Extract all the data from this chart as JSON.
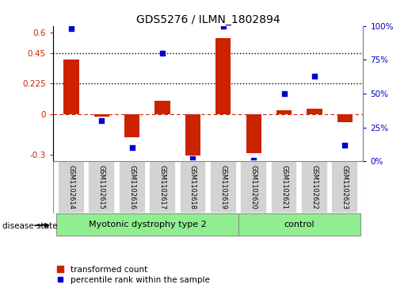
{
  "title": "GDS5276 / ILMN_1802894",
  "samples": [
    "GSM1102614",
    "GSM1102615",
    "GSM1102616",
    "GSM1102617",
    "GSM1102618",
    "GSM1102619",
    "GSM1102620",
    "GSM1102621",
    "GSM1102622",
    "GSM1102623"
  ],
  "transformed_count": [
    0.4,
    -0.02,
    -0.17,
    0.1,
    -0.31,
    0.56,
    -0.29,
    0.025,
    0.04,
    -0.06
  ],
  "percentile_rank": [
    98,
    30,
    10,
    80,
    2,
    100,
    1,
    50,
    63,
    12
  ],
  "disease_groups": [
    {
      "label": "Myotonic dystrophy type 2",
      "start": 0,
      "end": 5,
      "color": "#90EE90"
    },
    {
      "label": "control",
      "start": 6,
      "end": 9,
      "color": "#90EE90"
    }
  ],
  "ylim_left": [
    -0.35,
    0.65
  ],
  "ylim_right": [
    0,
    100
  ],
  "yticks_left": [
    -0.3,
    0,
    0.225,
    0.45,
    0.6
  ],
  "yticks_right": [
    0,
    25,
    50,
    75,
    100
  ],
  "ytick_labels_left": [
    "-0.3",
    "0",
    "0.225",
    "0.45",
    "0.6"
  ],
  "ytick_labels_right": [
    "0%",
    "25%",
    "50%",
    "75%",
    "100%"
  ],
  "hlines": [
    0.225,
    0.45
  ],
  "bar_color": "#CC2200",
  "dot_color": "#0000CC",
  "zero_line_color": "#CC2200",
  "grid_line_color": "#000000",
  "bg_color": "#FFFFFF",
  "legend_bar_label": "transformed count",
  "legend_dot_label": "percentile rank within the sample",
  "disease_state_label": "disease state",
  "sample_box_color": "#D3D3D3",
  "bar_width": 0.5,
  "dot_size": 18
}
